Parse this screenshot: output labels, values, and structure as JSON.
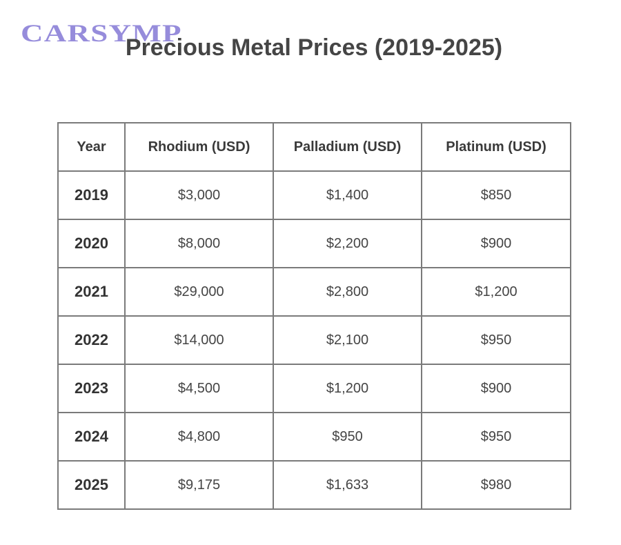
{
  "logo": "CARSYMP",
  "header": {
    "title": "Precious Metal Prices (2019-2025)"
  },
  "table": {
    "columns": [
      "Year",
      "Rhodium (USD)",
      "Palladium (USD)",
      "Platinum (USD)"
    ],
    "rows": [
      [
        "2019",
        "$3,000",
        "$1,400",
        "$850"
      ],
      [
        "2020",
        "$8,000",
        "$2,200",
        "$900"
      ],
      [
        "2021",
        "$29,000",
        "$2,800",
        "$1,200"
      ],
      [
        "2022",
        "$14,000",
        "$2,100",
        "$950"
      ],
      [
        "2023",
        "$4,500",
        "$1,200",
        "$900"
      ],
      [
        "2024",
        "$4,800",
        "$950",
        "$950"
      ],
      [
        "2025",
        "$9,175",
        "$1,633",
        "$980"
      ]
    ]
  }
}
